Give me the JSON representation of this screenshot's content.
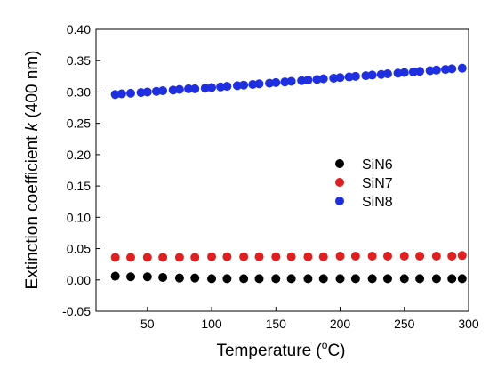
{
  "chart_data": {
    "type": "scatter",
    "xlabel_parts": [
      "Temperature (",
      "o",
      "C)"
    ],
    "ylabel_parts": [
      "Extinction coefficient ",
      "k",
      " (400 nm)"
    ],
    "xlim": [
      10,
      300
    ],
    "ylim": [
      -0.05,
      0.4
    ],
    "xticks": [
      50,
      100,
      150,
      200,
      250,
      300
    ],
    "yticks": [
      -0.05,
      0.0,
      0.05,
      0.1,
      0.15,
      0.2,
      0.25,
      0.3,
      0.35,
      0.4
    ],
    "xtick_labels": [
      "50",
      "100",
      "150",
      "200",
      "250",
      "300"
    ],
    "ytick_labels": [
      "-0.05",
      "0.00",
      "0.05",
      "0.10",
      "0.15",
      "0.20",
      "0.25",
      "0.30",
      "0.35",
      "0.40"
    ],
    "grid": false,
    "legend_position": "center-right",
    "series": [
      {
        "name": "SiN6",
        "color": "#000000",
        "x": [
          25,
          37,
          50,
          62,
          75,
          87,
          100,
          112,
          125,
          137,
          150,
          162,
          175,
          187,
          200,
          212,
          225,
          237,
          250,
          262,
          275,
          287,
          295
        ],
        "y": [
          0.006,
          0.005,
          0.005,
          0.004,
          0.003,
          0.003,
          0.002,
          0.002,
          0.002,
          0.002,
          0.002,
          0.002,
          0.002,
          0.002,
          0.002,
          0.002,
          0.002,
          0.002,
          0.002,
          0.002,
          0.002,
          0.002,
          0.002
        ]
      },
      {
        "name": "SiN7",
        "color": "#e02020",
        "x": [
          25,
          37,
          50,
          62,
          75,
          87,
          100,
          112,
          125,
          137,
          150,
          162,
          175,
          187,
          200,
          212,
          225,
          237,
          250,
          262,
          275,
          287,
          295
        ],
        "y": [
          0.036,
          0.036,
          0.036,
          0.036,
          0.036,
          0.036,
          0.037,
          0.037,
          0.037,
          0.037,
          0.037,
          0.037,
          0.037,
          0.037,
          0.038,
          0.038,
          0.038,
          0.038,
          0.038,
          0.038,
          0.038,
          0.038,
          0.039
        ]
      },
      {
        "name": "SiN8",
        "color": "#1f2fe0",
        "x": [
          25,
          30,
          37,
          45,
          50,
          57,
          62,
          70,
          75,
          82,
          87,
          95,
          100,
          107,
          112,
          120,
          125,
          132,
          137,
          145,
          150,
          157,
          162,
          170,
          175,
          182,
          187,
          195,
          200,
          207,
          212,
          220,
          225,
          232,
          237,
          245,
          250,
          257,
          262,
          270,
          275,
          282,
          287,
          295
        ],
        "y": [
          0.296,
          0.297,
          0.298,
          0.299,
          0.3,
          0.301,
          0.302,
          0.303,
          0.304,
          0.305,
          0.305,
          0.306,
          0.307,
          0.308,
          0.309,
          0.31,
          0.311,
          0.312,
          0.313,
          0.314,
          0.315,
          0.316,
          0.317,
          0.318,
          0.319,
          0.32,
          0.321,
          0.322,
          0.323,
          0.324,
          0.325,
          0.326,
          0.327,
          0.328,
          0.329,
          0.33,
          0.331,
          0.332,
          0.333,
          0.334,
          0.335,
          0.336,
          0.337,
          0.338
        ]
      }
    ]
  }
}
